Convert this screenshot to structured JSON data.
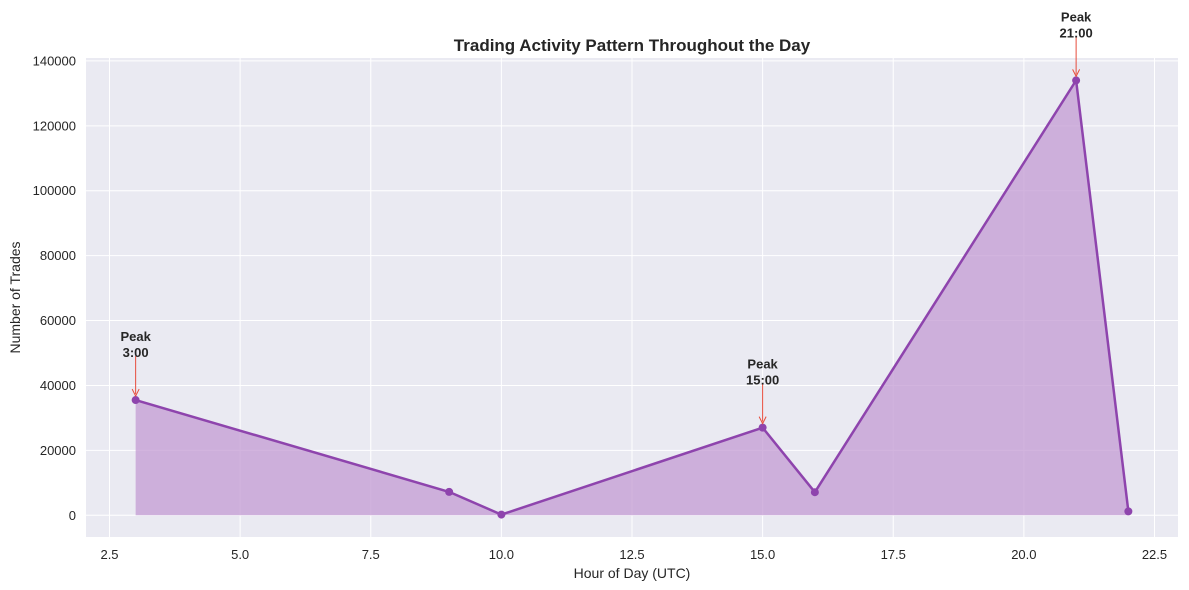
{
  "chart_data": {
    "type": "area",
    "title": "Trading Activity Pattern Throughout the Day",
    "xlabel": "Hour of Day (UTC)",
    "ylabel": "Number of Trades",
    "x": [
      3,
      9,
      10,
      15,
      16,
      21,
      22
    ],
    "y": [
      35500,
      7200,
      200,
      27000,
      7100,
      134000,
      1200
    ],
    "xlim": [
      2.05,
      22.95
    ],
    "ylim": [
      -6700,
      140900
    ],
    "xticks": [
      2.5,
      5.0,
      7.5,
      10.0,
      12.5,
      15.0,
      17.5,
      20.0,
      22.5
    ],
    "xtick_labels": [
      "2.5",
      "5.0",
      "7.5",
      "10.0",
      "12.5",
      "15.0",
      "17.5",
      "20.0",
      "22.5"
    ],
    "yticks": [
      0,
      20000,
      40000,
      60000,
      80000,
      100000,
      120000,
      140000
    ],
    "ytick_labels": [
      "0",
      "20000",
      "40000",
      "60000",
      "80000",
      "100000",
      "120000",
      "140000"
    ],
    "grid": true,
    "line_color": "#8e44ad",
    "fill_color": "#c39bd3",
    "background_color": "#eaeaf2",
    "annotation_color": "#e74c3c",
    "annotations": [
      {
        "x": 3,
        "y": 35500,
        "line1": "Peak",
        "line2": "3:00"
      },
      {
        "x": 15,
        "y": 27000,
        "line1": "Peak",
        "line2": "15:00"
      },
      {
        "x": 21,
        "y": 134000,
        "line1": "Peak",
        "line2": "21:00"
      }
    ]
  }
}
